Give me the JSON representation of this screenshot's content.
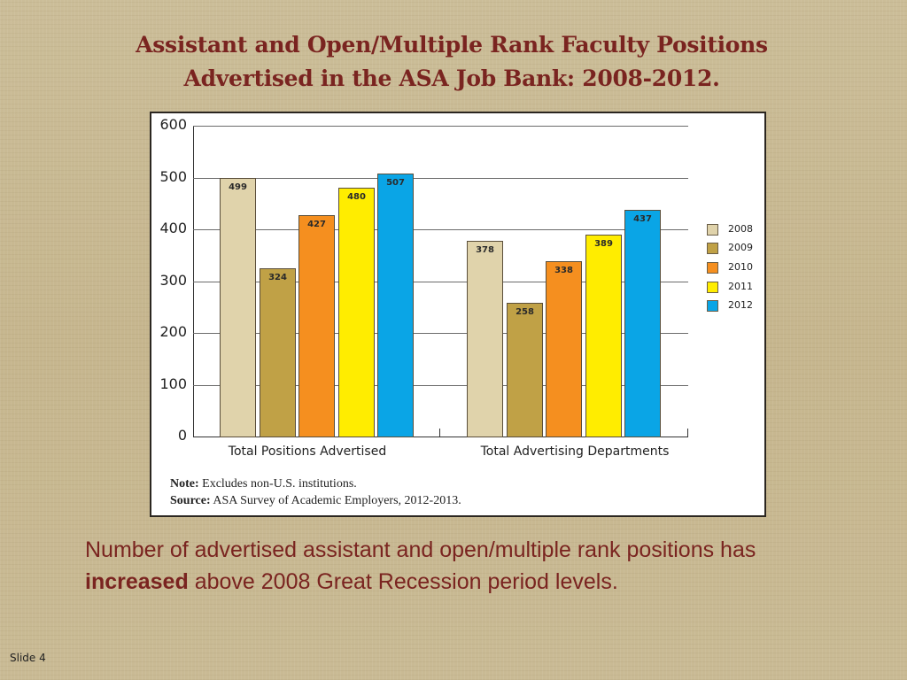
{
  "slide": {
    "title_line1": "Assistant and Open/Multiple Rank Faculty Positions",
    "title_line2": "Advertised in the ASA Job Bank: 2008-2012.",
    "caption_part1": "Number of advertised assistant and open/multiple rank positions has ",
    "caption_bold": "increased",
    "caption_part2": " above 2008 Great Recession period levels.",
    "slide_number": "Slide 4"
  },
  "chart": {
    "y_ticks": [
      "600",
      "500",
      "400",
      "300",
      "200",
      "100",
      "0"
    ],
    "note_label": "Note:",
    "note_text": " Excludes non-U.S. institutions.",
    "source_label": "Source:",
    "source_text": " ASA Survey of Academic Employers, 2012-2013."
  },
  "chart_data": {
    "type": "bar",
    "title": "Assistant and Open/Multiple Rank Faculty Positions Advertised in the ASA Job Bank: 2008-2012.",
    "categories": [
      "Total Positions Advertised",
      "Total Advertising Departments"
    ],
    "series": [
      {
        "name": "2008",
        "color": "#e0d3ab",
        "values": [
          499,
          378
        ]
      },
      {
        "name": "2009",
        "color": "#c0a146",
        "values": [
          324,
          258
        ]
      },
      {
        "name": "2010",
        "color": "#f58f1f",
        "values": [
          427,
          338
        ]
      },
      {
        "name": "2011",
        "color": "#ffed00",
        "values": [
          480,
          389
        ]
      },
      {
        "name": "2012",
        "color": "#0aa5e6",
        "values": [
          507,
          437
        ]
      }
    ],
    "xlabel": "",
    "ylabel": "",
    "ylim": [
      0,
      600
    ],
    "yticks": [
      0,
      100,
      200,
      300,
      400,
      500,
      600
    ],
    "grid": true,
    "legend_position": "right",
    "data_labels": true,
    "annotations": [
      "Note: Excludes non-U.S. institutions.",
      "Source: ASA Survey of Academic Employers, 2012-2013."
    ]
  }
}
